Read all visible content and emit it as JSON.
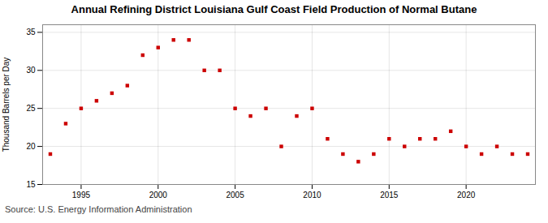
{
  "chart_data": {
    "type": "scatter",
    "title": "Annual Refining District Louisiana Gulf Coast Field Production of Normal Butane",
    "ylabel": "Thousand Barrels per Day",
    "annotations": [
      "Source: U.S. Energy Information Administration"
    ],
    "x": [
      1993,
      1994,
      1995,
      1996,
      1997,
      1998,
      1999,
      2000,
      2001,
      2002,
      2003,
      2004,
      2005,
      2006,
      2007,
      2008,
      2009,
      2010,
      2011,
      2012,
      2013,
      2014,
      2015,
      2016,
      2017,
      2018,
      2019,
      2020,
      2021,
      2022,
      2023,
      2024
    ],
    "values": [
      19.0,
      23.0,
      25.0,
      26.0,
      27.0,
      28.0,
      32.0,
      33.0,
      34.0,
      34.0,
      30.0,
      30.0,
      25.0,
      24.0,
      25.0,
      20.0,
      24.0,
      25.0,
      21.0,
      19.0,
      18.0,
      19.0,
      21.0,
      20.0,
      21.0,
      21.0,
      22.0,
      20.0,
      19.0,
      20.0,
      19.0,
      19.0
    ],
    "color": "#cc0000",
    "marker": "square",
    "xlim": [
      1992.5,
      2024.5
    ],
    "ylim": [
      15,
      36
    ],
    "xticks": [
      1995,
      2000,
      2005,
      2010,
      2015,
      2020
    ],
    "yticks": [
      15,
      20,
      25,
      30,
      35
    ],
    "grid": true
  }
}
